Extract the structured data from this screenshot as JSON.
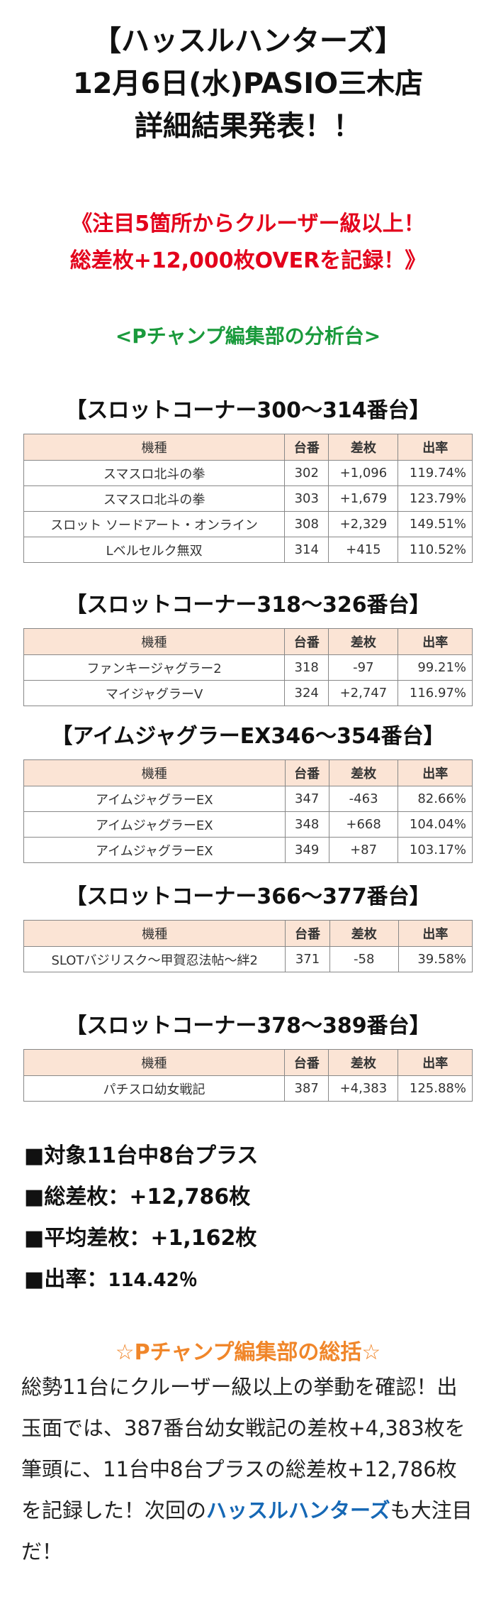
{
  "header": {
    "line1": "【ハッスルハンターズ】",
    "line2": "12月6日(水)PASIO三木店",
    "line3": "詳細結果発表！！"
  },
  "highlight": {
    "line1": "《注目5箇所からクルーザー級以上！",
    "line2": "総差枚+12,000枚OVERを記録！》"
  },
  "analysis_label": "<Pチャンプ編集部の分析台>",
  "table_headers": {
    "model": "機種",
    "num": "台番",
    "diff": "差枚",
    "rate": "出率"
  },
  "sections": [
    {
      "title": "【スロットコーナー300～314番台】",
      "rows": [
        {
          "model": "スマスロ北斗の拳",
          "num": "302",
          "diff": "+1,096",
          "rate": "119.74%"
        },
        {
          "model": "スマスロ北斗の拳",
          "num": "303",
          "diff": "+1,679",
          "rate": "123.79%"
        },
        {
          "model": "スロット ソードアート・オンライン",
          "num": "308",
          "diff": "+2,329",
          "rate": "149.51%"
        },
        {
          "model": "Lベルセルク無双",
          "num": "314",
          "diff": "+415",
          "rate": "110.52%"
        }
      ]
    },
    {
      "title": "【スロットコーナー318～326番台】",
      "rows": [
        {
          "model": "ファンキージャグラー2",
          "num": "318",
          "diff": "-97",
          "rate": "99.21%"
        },
        {
          "model": "マイジャグラーV",
          "num": "324",
          "diff": "+2,747",
          "rate": "116.97%"
        }
      ]
    },
    {
      "title": "【アイムジャグラーEX346～354番台】",
      "rows": [
        {
          "model": "アイムジャグラーEX",
          "num": "347",
          "diff": "-463",
          "rate": "82.66%"
        },
        {
          "model": "アイムジャグラーEX",
          "num": "348",
          "diff": "+668",
          "rate": "104.04%"
        },
        {
          "model": "アイムジャグラーEX",
          "num": "349",
          "diff": "+87",
          "rate": "103.17%"
        }
      ]
    },
    {
      "title": "【スロットコーナー366～377番台】",
      "rows": [
        {
          "model": "SLOTバジリスク～甲賀忍法帖～絆2",
          "num": "371",
          "diff": "-58",
          "rate": "39.58%"
        }
      ]
    },
    {
      "title": "【スロットコーナー378～389番台】",
      "rows": [
        {
          "model": "パチスロ幼女戦記",
          "num": "387",
          "diff": "+4,383",
          "rate": "125.88%"
        }
      ]
    }
  ],
  "summary": {
    "line1": "■対象11台中8台プラス",
    "line2": "■総差枚：+12,786枚",
    "line3": "■平均差枚：+1,162枚",
    "line4_label": "■出率：",
    "line4_value": "114.42％"
  },
  "conclusion": {
    "title": "☆Pチャンプ編集部の総括☆",
    "text_part1": "総勢11台にクルーザー級以上の挙動を確認！出玉面では、387番台幼女戦記の差枚+4,383枚を筆頭に、11台中8台プラスの総差枚+12,786枚を記録した！次回の",
    "brand": "ハッスルハンターズ",
    "text_part2": "も大注目だ！"
  }
}
